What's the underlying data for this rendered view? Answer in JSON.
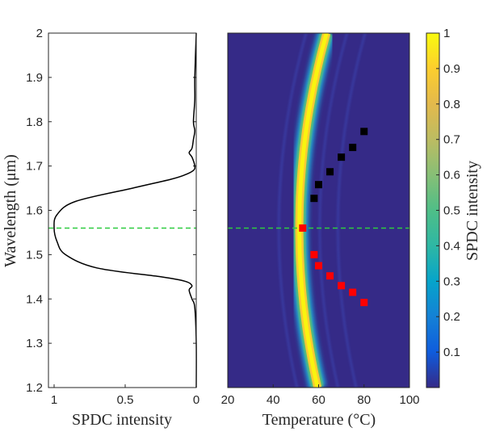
{
  "chart_data": [
    {
      "type": "line",
      "name": "spectrum",
      "xlabel": "SPDC intensity",
      "ylabel": "Wavelength (μm)",
      "xlim": [
        1,
        0
      ],
      "ylim": [
        1.2,
        2.0
      ],
      "xticks": [
        "1",
        "0.5",
        "0"
      ],
      "yticks": [
        "1.2",
        "1.3",
        "1.4",
        "1.5",
        "1.6",
        "1.7",
        "1.8",
        "1.9",
        "2"
      ],
      "series": [
        {
          "name": "SPDC spectrum",
          "wavelength": [
            1.2,
            1.3,
            1.38,
            1.4,
            1.42,
            1.43,
            1.44,
            1.45,
            1.47,
            1.5,
            1.53,
            1.56,
            1.59,
            1.62,
            1.65,
            1.67,
            1.68,
            1.69,
            1.7,
            1.72,
            1.73,
            1.74,
            1.76,
            1.78,
            1.8,
            1.85,
            1.9,
            2.0
          ],
          "intensity": [
            0.0,
            0.0,
            0.01,
            0.03,
            0.05,
            0.03,
            0.08,
            0.25,
            0.7,
            0.92,
            0.98,
            1.0,
            0.98,
            0.85,
            0.45,
            0.18,
            0.08,
            0.02,
            0.01,
            0.03,
            0.05,
            0.03,
            0.02,
            0.01,
            0.02,
            0.01,
            0.01,
            0.0
          ]
        }
      ],
      "reference_line": {
        "wavelength": 1.56,
        "color": "#2ecc40",
        "style": "dashed"
      }
    },
    {
      "type": "heatmap",
      "name": "temperature-map",
      "xlabel": "Temperature (°C)",
      "xlim": [
        20,
        100
      ],
      "ylim": [
        1.2,
        2.0
      ],
      "xticks": [
        "20",
        "40",
        "60",
        "80",
        "100"
      ],
      "colorbar": {
        "label": "SPDC intensity",
        "ticks": [
          "0.1",
          "0.2",
          "0.3",
          "0.4",
          "0.5",
          "0.6",
          "0.7",
          "0.8",
          "0.9",
          "1"
        ],
        "range": [
          0,
          1
        ],
        "colormap": "parula"
      },
      "ridge": {
        "vertex_temperature": 51.5,
        "vertex_wavelength": 1.56,
        "curvature": 62
      },
      "markers_black": [
        {
          "temperature": 58,
          "wavelength": 1.627
        },
        {
          "temperature": 60,
          "wavelength": 1.658
        },
        {
          "temperature": 65,
          "wavelength": 1.687
        },
        {
          "temperature": 70,
          "wavelength": 1.72
        },
        {
          "temperature": 75,
          "wavelength": 1.742
        },
        {
          "temperature": 80,
          "wavelength": 1.778
        }
      ],
      "markers_red": [
        {
          "temperature": 53,
          "wavelength": 1.56
        },
        {
          "temperature": 58,
          "wavelength": 1.5
        },
        {
          "temperature": 60,
          "wavelength": 1.475
        },
        {
          "temperature": 65,
          "wavelength": 1.452
        },
        {
          "temperature": 70,
          "wavelength": 1.43
        },
        {
          "temperature": 75,
          "wavelength": 1.415
        },
        {
          "temperature": 80,
          "wavelength": 1.392
        }
      ],
      "reference_line": {
        "wavelength": 1.56,
        "color": "#2ecc40",
        "style": "dashed"
      }
    }
  ]
}
